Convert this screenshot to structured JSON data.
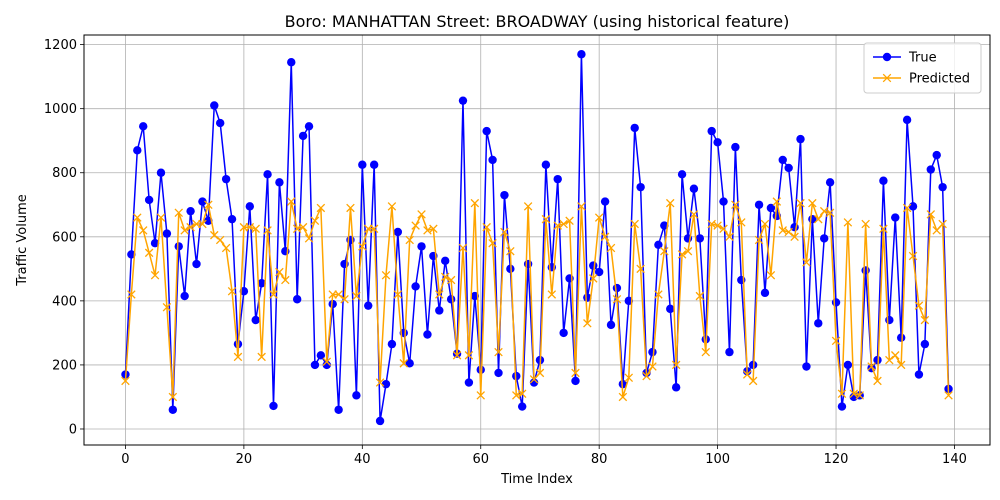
{
  "chart_data": {
    "type": "line",
    "title": "Boro: MANHATTAN Street: BROADWAY (using historical feature)",
    "xlabel": "Time Index",
    "ylabel": "Traffic Volume",
    "xlim": [
      -7,
      146
    ],
    "ylim": [
      -50,
      1230
    ],
    "xticks": [
      0,
      20,
      40,
      60,
      80,
      100,
      120,
      140
    ],
    "yticks": [
      0,
      200,
      400,
      600,
      800,
      1000,
      1200
    ],
    "grid": true,
    "legend_position": "top-right",
    "series": [
      {
        "name": "True",
        "color": "#0000ff",
        "marker": "circle",
        "values": [
          170,
          545,
          870,
          945,
          715,
          580,
          800,
          610,
          60,
          570,
          415,
          680,
          515,
          710,
          650,
          1010,
          955,
          780,
          655,
          265,
          430,
          695,
          340,
          455,
          795,
          72,
          770,
          555,
          1145,
          405,
          915,
          945,
          200,
          230,
          200,
          390,
          60,
          515,
          590,
          105,
          825,
          385,
          825,
          25,
          140,
          265,
          615,
          300,
          205,
          445,
          570,
          295,
          540,
          370,
          525,
          405,
          235,
          1025,
          145,
          415,
          185,
          930,
          840,
          175,
          730,
          500,
          165,
          70,
          515,
          145,
          215,
          825,
          505,
          780,
          300,
          470,
          150,
          1170,
          410,
          510,
          490,
          710,
          325,
          440,
          140,
          400,
          940,
          755,
          175,
          240,
          575,
          635,
          375,
          130,
          795,
          595,
          750,
          595,
          280,
          930,
          895,
          710,
          240,
          880,
          465,
          180,
          200,
          700,
          425,
          690,
          665,
          840,
          815,
          630,
          905,
          195,
          655,
          330,
          595,
          770,
          395,
          70,
          200,
          100,
          105,
          495,
          190,
          215,
          775,
          340,
          660,
          285,
          965,
          695,
          170,
          265,
          810,
          855,
          755,
          125
        ]
      },
      {
        "name": "Predicted",
        "color": "#ffa500",
        "marker": "x",
        "values": [
          150,
          420,
          660,
          620,
          550,
          480,
          660,
          380,
          100,
          675,
          620,
          630,
          640,
          640,
          700,
          605,
          590,
          565,
          430,
          225,
          630,
          630,
          625,
          225,
          620,
          420,
          490,
          465,
          710,
          625,
          630,
          595,
          650,
          690,
          210,
          420,
          420,
          405,
          690,
          415,
          570,
          625,
          625,
          145,
          480,
          695,
          420,
          205,
          590,
          635,
          670,
          620,
          625,
          420,
          475,
          465,
          230,
          565,
          230,
          705,
          105,
          630,
          580,
          240,
          615,
          555,
          105,
          110,
          695,
          155,
          175,
          655,
          420,
          635,
          640,
          650,
          175,
          695,
          330,
          470,
          660,
          600,
          565,
          405,
          100,
          160,
          640,
          500,
          165,
          195,
          420,
          555,
          705,
          200,
          545,
          555,
          670,
          415,
          240,
          640,
          635,
          625,
          600,
          700,
          645,
          170,
          150,
          590,
          640,
          480,
          710,
          620,
          615,
          600,
          705,
          520,
          705,
          655,
          680,
          675,
          275,
          110,
          645,
          110,
          105,
          640,
          195,
          150,
          625,
          215,
          230,
          200,
          690,
          540,
          385,
          340,
          670,
          620,
          640,
          105
        ]
      }
    ]
  }
}
